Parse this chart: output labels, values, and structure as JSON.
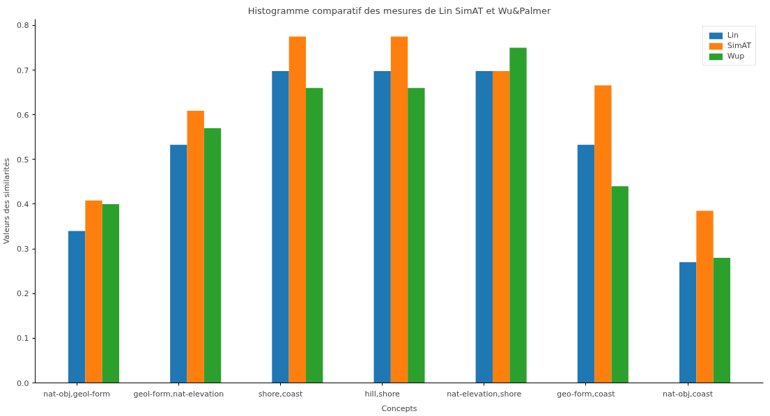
{
  "chart_data": {
    "type": "bar",
    "title": "Histogramme comparatif des mesures de Lin SimAT et Wu&Palmer",
    "xlabel": "Concepts",
    "ylabel": "Valeurs des similarités",
    "categories": [
      "nat-obj,geol-form",
      "geol-form,nat-elevation",
      "shore,coast",
      "hill,shore",
      "nat-elevation,shore",
      "geo-form,coast",
      "nat-obj,coast"
    ],
    "series": [
      {
        "name": "Lin",
        "color": "#1f77b4",
        "values": [
          0.34,
          0.533,
          0.698,
          0.698,
          0.698,
          0.533,
          0.27
        ]
      },
      {
        "name": "SimAT",
        "color": "#ff7f0e",
        "values": [
          0.408,
          0.609,
          0.775,
          0.775,
          0.698,
          0.666,
          0.385
        ]
      },
      {
        "name": "Wup",
        "color": "#2ca02c",
        "values": [
          0.4,
          0.57,
          0.66,
          0.66,
          0.75,
          0.44,
          0.28
        ]
      }
    ],
    "ylim": [
      0,
      0.814
    ],
    "yticks": [
      {
        "value": 0,
        "label": "0.0"
      },
      0.1,
      0.2,
      0.3,
      0.4,
      0.5,
      0.6,
      0.7,
      0.8
    ],
    "grid": false,
    "legend": "top right"
  }
}
